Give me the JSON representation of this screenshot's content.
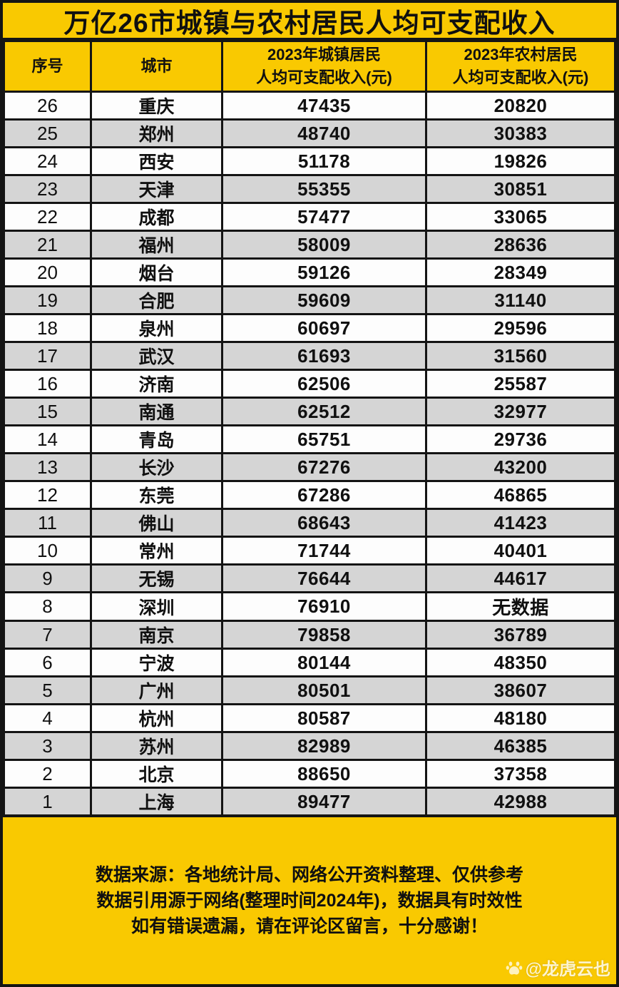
{
  "title": "万亿26市城镇与农村居民人均可支配收入",
  "table": {
    "headers": {
      "rank": "序号",
      "city": "城市",
      "urban_line1": "2023年城镇居民",
      "urban_line2": "人均可支配收入(元)",
      "rural_line1": "2023年农村居民",
      "rural_line2": "人均可支配收入(元)"
    },
    "rows": [
      {
        "rank": "26",
        "city": "重庆",
        "urban": "47435",
        "rural": "20820"
      },
      {
        "rank": "25",
        "city": "郑州",
        "urban": "48740",
        "rural": "30383"
      },
      {
        "rank": "24",
        "city": "西安",
        "urban": "51178",
        "rural": "19826"
      },
      {
        "rank": "23",
        "city": "天津",
        "urban": "55355",
        "rural": "30851"
      },
      {
        "rank": "22",
        "city": "成都",
        "urban": "57477",
        "rural": "33065"
      },
      {
        "rank": "21",
        "city": "福州",
        "urban": "58009",
        "rural": "28636"
      },
      {
        "rank": "20",
        "city": "烟台",
        "urban": "59126",
        "rural": "28349"
      },
      {
        "rank": "19",
        "city": "合肥",
        "urban": "59609",
        "rural": "31140"
      },
      {
        "rank": "18",
        "city": "泉州",
        "urban": "60697",
        "rural": "29596"
      },
      {
        "rank": "17",
        "city": "武汉",
        "urban": "61693",
        "rural": "31560"
      },
      {
        "rank": "16",
        "city": "济南",
        "urban": "62506",
        "rural": "25587"
      },
      {
        "rank": "15",
        "city": "南通",
        "urban": "62512",
        "rural": "32977"
      },
      {
        "rank": "14",
        "city": "青岛",
        "urban": "65751",
        "rural": "29736"
      },
      {
        "rank": "13",
        "city": "长沙",
        "urban": "67276",
        "rural": "43200"
      },
      {
        "rank": "12",
        "city": "东莞",
        "urban": "67286",
        "rural": "46865"
      },
      {
        "rank": "11",
        "city": "佛山",
        "urban": "68643",
        "rural": "41423"
      },
      {
        "rank": "10",
        "city": "常州",
        "urban": "71744",
        "rural": "40401"
      },
      {
        "rank": "9",
        "city": "无锡",
        "urban": "76644",
        "rural": "44617"
      },
      {
        "rank": "8",
        "city": "深圳",
        "urban": "76910",
        "rural": "无数据"
      },
      {
        "rank": "7",
        "city": "南京",
        "urban": "79858",
        "rural": "36789"
      },
      {
        "rank": "6",
        "city": "宁波",
        "urban": "80144",
        "rural": "48350"
      },
      {
        "rank": "5",
        "city": "广州",
        "urban": "80501",
        "rural": "38607"
      },
      {
        "rank": "4",
        "city": "杭州",
        "urban": "80587",
        "rural": "48180"
      },
      {
        "rank": "3",
        "city": "苏州",
        "urban": "82989",
        "rural": "46385"
      },
      {
        "rank": "2",
        "city": "北京",
        "urban": "88650",
        "rural": "37358"
      },
      {
        "rank": "1",
        "city": "上海",
        "urban": "89477",
        "rural": "42988"
      }
    ]
  },
  "footer": {
    "line1": "数据来源：各地统计局、网络公开资料整理、仅供参考",
    "line2": "数据引用源于网络(整理时间2024年)，数据具有时效性",
    "line3": "如有错误遗漏，请在评论区留言，十分感谢！"
  },
  "watermark": {
    "icon": "paw-icon",
    "text": "@龙虎云也"
  },
  "colors": {
    "yellow": "#F9C901",
    "gray_row": "#D5D5D5",
    "white_row": "#FDFDFD",
    "border": "#141414"
  },
  "chart_data": {
    "type": "table",
    "title": "万亿26市城镇与农村居民人均可支配收入",
    "columns": [
      "序号",
      "城市",
      "2023年城镇居民人均可支配收入(元)",
      "2023年农村居民人均可支配收入(元)"
    ],
    "categories": [
      "重庆",
      "郑州",
      "西安",
      "天津",
      "成都",
      "福州",
      "烟台",
      "合肥",
      "泉州",
      "武汉",
      "济南",
      "南通",
      "青岛",
      "长沙",
      "东莞",
      "佛山",
      "常州",
      "无锡",
      "深圳",
      "南京",
      "宁波",
      "广州",
      "杭州",
      "苏州",
      "北京",
      "上海"
    ],
    "ranks": [
      26,
      25,
      24,
      23,
      22,
      21,
      20,
      19,
      18,
      17,
      16,
      15,
      14,
      13,
      12,
      11,
      10,
      9,
      8,
      7,
      6,
      5,
      4,
      3,
      2,
      1
    ],
    "series": [
      {
        "name": "2023年城镇居民人均可支配收入(元)",
        "values": [
          47435,
          48740,
          51178,
          55355,
          57477,
          58009,
          59126,
          59609,
          60697,
          61693,
          62506,
          62512,
          65751,
          67276,
          67286,
          68643,
          71744,
          76644,
          76910,
          79858,
          80144,
          80501,
          80587,
          82989,
          88650,
          89477
        ]
      },
      {
        "name": "2023年农村居民人均可支配收入(元)",
        "values": [
          20820,
          30383,
          19826,
          30851,
          33065,
          28636,
          28349,
          31140,
          29596,
          31560,
          25587,
          32977,
          29736,
          43200,
          46865,
          41423,
          40401,
          44617,
          null,
          36789,
          48350,
          38607,
          48180,
          46385,
          37358,
          42988
        ]
      }
    ],
    "missing_value_label": "无数据",
    "missing_value_city": "深圳"
  }
}
